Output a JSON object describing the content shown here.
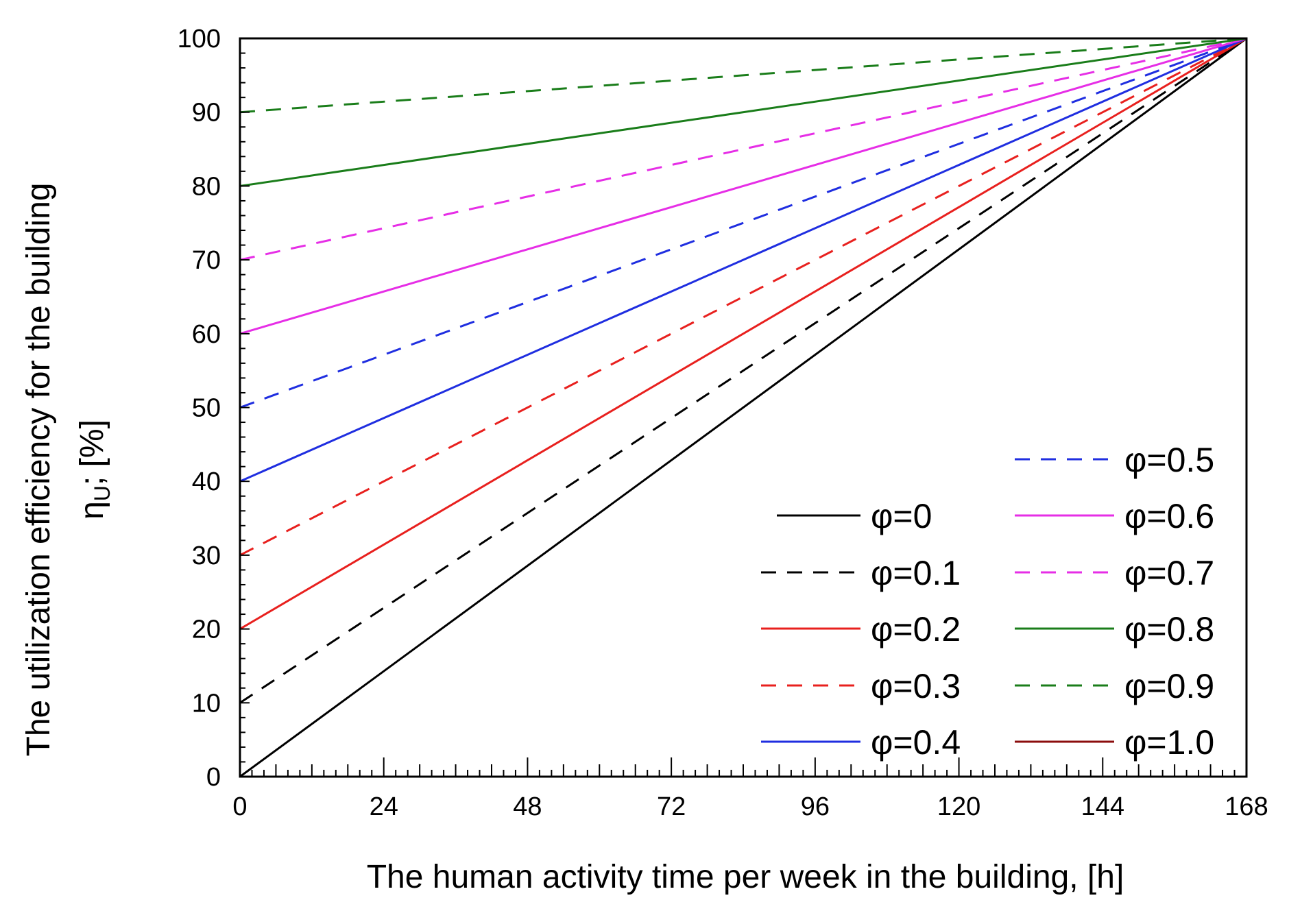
{
  "chart_data": {
    "type": "line",
    "title": "",
    "xlabel": "The human activity time per week in the building, [h]",
    "ylabel_line1": "The utilization efficiency for the building",
    "ylabel_symbol": "η",
    "ylabel_subscript": "U",
    "ylabel_suffix": "; [%]",
    "xlim": [
      0,
      168
    ],
    "ylim": [
      0,
      100
    ],
    "xticks": [
      0,
      24,
      48,
      72,
      96,
      120,
      144,
      168
    ],
    "yticks": [
      0,
      10,
      20,
      30,
      40,
      50,
      60,
      70,
      80,
      90,
      100
    ],
    "grid": false,
    "legend_position": "bottom-right",
    "series": [
      {
        "name": "φ=0",
        "x": [
          0,
          168
        ],
        "y": [
          0,
          100
        ],
        "color": "#000000",
        "dash": "solid"
      },
      {
        "name": "φ=0.1",
        "x": [
          0,
          168
        ],
        "y": [
          10,
          100
        ],
        "color": "#000000",
        "dash": "dashed"
      },
      {
        "name": "φ=0.2",
        "x": [
          0,
          168
        ],
        "y": [
          20,
          100
        ],
        "color": "#e8201e",
        "dash": "solid"
      },
      {
        "name": "φ=0.3",
        "x": [
          0,
          168
        ],
        "y": [
          30,
          100
        ],
        "color": "#e8201e",
        "dash": "dashed"
      },
      {
        "name": "φ=0.4",
        "x": [
          0,
          168
        ],
        "y": [
          40,
          100
        ],
        "color": "#1f2ee0",
        "dash": "solid"
      },
      {
        "name": "φ=0.5",
        "x": [
          0,
          168
        ],
        "y": [
          50,
          100
        ],
        "color": "#1f2ee0",
        "dash": "dashed"
      },
      {
        "name": "φ=0.6",
        "x": [
          0,
          168
        ],
        "y": [
          60,
          100
        ],
        "color": "#e62ee6",
        "dash": "solid"
      },
      {
        "name": "φ=0.7",
        "x": [
          0,
          168
        ],
        "y": [
          70,
          100
        ],
        "color": "#e62ee6",
        "dash": "dashed"
      },
      {
        "name": "φ=0.8",
        "x": [
          0,
          168
        ],
        "y": [
          80,
          100
        ],
        "color": "#1a7d1a",
        "dash": "solid"
      },
      {
        "name": "φ=0.9",
        "x": [
          0,
          168
        ],
        "y": [
          90,
          100
        ],
        "color": "#1a7d1a",
        "dash": "dashed"
      },
      {
        "name": "φ=1.0",
        "x": [
          0,
          168
        ],
        "y": [
          100,
          100
        ],
        "color": "#8b0d0d",
        "dash": "solid"
      }
    ]
  }
}
